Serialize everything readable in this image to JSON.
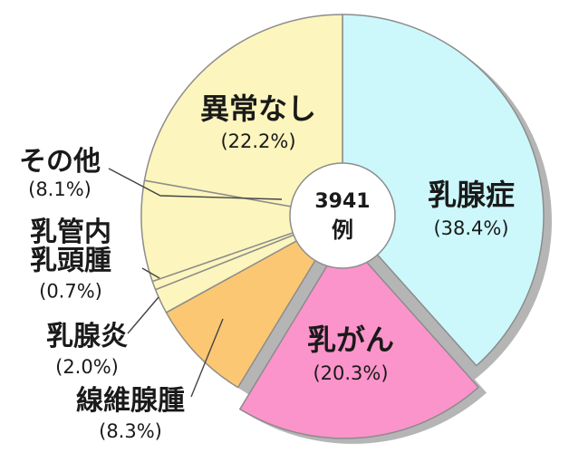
{
  "chart_data": {
    "type": "pie",
    "start": "12 o'clock, clockwise; one slice exploded",
    "center_label": {
      "line1": "3941",
      "line2": "例"
    },
    "slices": [
      {
        "name": "乳腺症",
        "percent_label": "(38.4%)",
        "value": 38.4,
        "color": "#ccf8fb",
        "exploded": false
      },
      {
        "name": "乳がん",
        "percent_label": "(20.3%)",
        "value": 20.3,
        "color": "#fb94ca",
        "exploded": true
      },
      {
        "name": "線維腺腫",
        "percent_label": "(8.3%)",
        "value": 8.3,
        "color": "#fcc772",
        "exploded": false
      },
      {
        "name": "乳腺炎",
        "percent_label": "(2.0%)",
        "value": 2.0,
        "color": "#fcf5bd",
        "exploded": false
      },
      {
        "name": "乳管内乳頭腫",
        "name_lines": [
          "乳管内",
          "乳頭腫"
        ],
        "percent_label": "(0.7%)",
        "value": 0.7,
        "color": "#fcf5bd",
        "exploded": false
      },
      {
        "name": "その他",
        "percent_label": "(8.1%)",
        "value": 8.1,
        "color": "#fcf5bd",
        "exploded": false
      },
      {
        "name": "異常なし",
        "percent_label": "(22.2%)",
        "value": 22.2,
        "color": "#fcf5bd",
        "exploded": false
      }
    ],
    "colors": {
      "edge": "#8c8c8c",
      "shadow": "#b5b5b5",
      "leader": "#444444",
      "center_fill": "#ffffff"
    }
  }
}
